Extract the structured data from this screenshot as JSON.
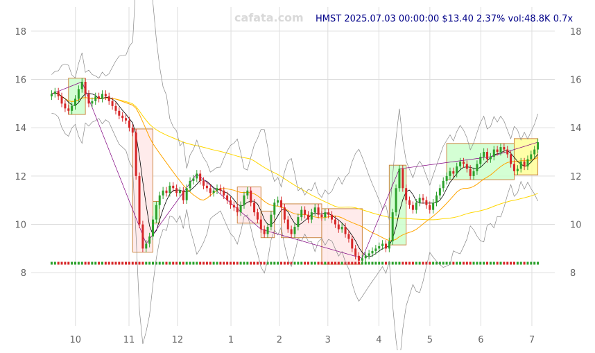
{
  "header": {
    "watermark": "cafata.com",
    "ticker_line": "HMST 2025.07.03 00:00:00 $13.40 2.37% vol:48.8K 0.7x"
  },
  "chart_data": {
    "type": "candlestick",
    "ticker": "HMST",
    "date": "2025.07.03 00:00:00",
    "last_price": 13.4,
    "change_pct": 2.37,
    "volume": "48.8K",
    "volume_ratio": "0.7x",
    "y_ticks": [
      8,
      10,
      12,
      14,
      16,
      18
    ],
    "x_ticks": [
      "10",
      "11",
      "12",
      "1",
      "2",
      "3",
      "4",
      "5",
      "6",
      "7"
    ],
    "ylim": [
      6.6,
      19.0
    ],
    "xlim": [
      0,
      192
    ],
    "x_tick_positions": [
      10,
      31,
      50,
      71,
      90,
      109,
      129,
      149,
      169,
      189
    ],
    "grid": true,
    "colors": {
      "up": "#2ca02c",
      "down": "#d62728",
      "spike": "#0000cc",
      "ma_short": "#000000",
      "ma_mid": "#ffa500",
      "ma_long": "#ffd700",
      "band": "#888888",
      "trend": "#800080",
      "box_up_fill": "#ccffcc",
      "box_down_fill": "#ffe8e8",
      "box_edge": "#cc8844",
      "box_yellow": "#ffff99"
    },
    "close": [
      15.4,
      15.5,
      15.3,
      15.0,
      14.8,
      14.7,
      14.9,
      15.2,
      15.6,
      15.9,
      15.4,
      15.0,
      15.1,
      15.3,
      15.2,
      15.4,
      15.3,
      15.1,
      14.9,
      14.7,
      14.5,
      14.4,
      14.3,
      14.0,
      13.8,
      12.0,
      10.0,
      9.0,
      9.2,
      9.5,
      10.2,
      10.8,
      11.2,
      11.4,
      11.3,
      11.6,
      11.5,
      11.3,
      11.4,
      11.0,
      11.5,
      11.8,
      11.9,
      12.1,
      11.8,
      11.6,
      11.5,
      11.3,
      11.4,
      11.5,
      11.4,
      11.2,
      11.0,
      10.8,
      10.7,
      10.5,
      10.8,
      11.2,
      11.4,
      10.9,
      10.5,
      10.2,
      9.8,
      9.6,
      9.9,
      10.4,
      10.9,
      11.0,
      10.7,
      10.2,
      9.8,
      9.6,
      9.9,
      10.3,
      10.6,
      10.4,
      10.2,
      10.5,
      10.7,
      10.4,
      10.3,
      10.5,
      10.4,
      10.2,
      10.0,
      9.8,
      9.9,
      9.6,
      9.4,
      9.0,
      8.7,
      8.5,
      8.6,
      8.7,
      8.8,
      8.9,
      9.0,
      9.1,
      9.2,
      9.0,
      9.3,
      10.5,
      11.5,
      12.3,
      11.5,
      11.0,
      10.8,
      10.6,
      10.9,
      11.1,
      11.0,
      10.8,
      10.6,
      10.9,
      11.2,
      11.5,
      11.8,
      12.0,
      12.2,
      12.1,
      12.4,
      12.6,
      12.5,
      12.3,
      12.0,
      12.2,
      12.5,
      12.8,
      13.0,
      12.7,
      12.8,
      13.1,
      13.0,
      13.2,
      13.1,
      12.9,
      12.5,
      12.2,
      12.3,
      12.6,
      12.4,
      12.7,
      12.9,
      13.1,
      13.4
    ]
  }
}
